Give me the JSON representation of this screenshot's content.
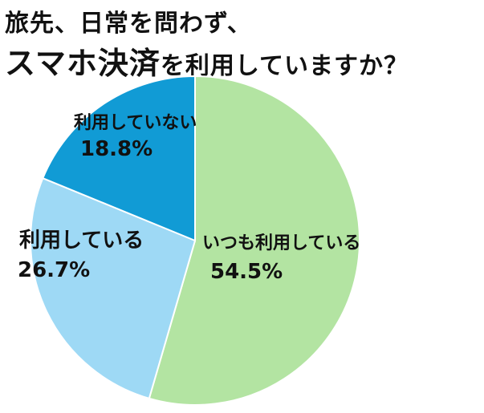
{
  "title": {
    "line1": "旅先、日常を問わず、",
    "line2_emphasis": "スマホ決済",
    "line2_rest": "を利用していますか？"
  },
  "chart_data": {
    "type": "pie",
    "start_angle_deg": 0,
    "direction": "clockwise",
    "slices": [
      {
        "label": "いつも利用している",
        "value": 54.5,
        "value_label": "54.5%",
        "color": "#b3e4a2"
      },
      {
        "label": "利用している",
        "value": 26.7,
        "value_label": "26.7%",
        "color": "#9ed9f5"
      },
      {
        "label": "利用していない",
        "value": 18.8,
        "value_label": "18.8%",
        "color": "#119bd5"
      }
    ]
  }
}
